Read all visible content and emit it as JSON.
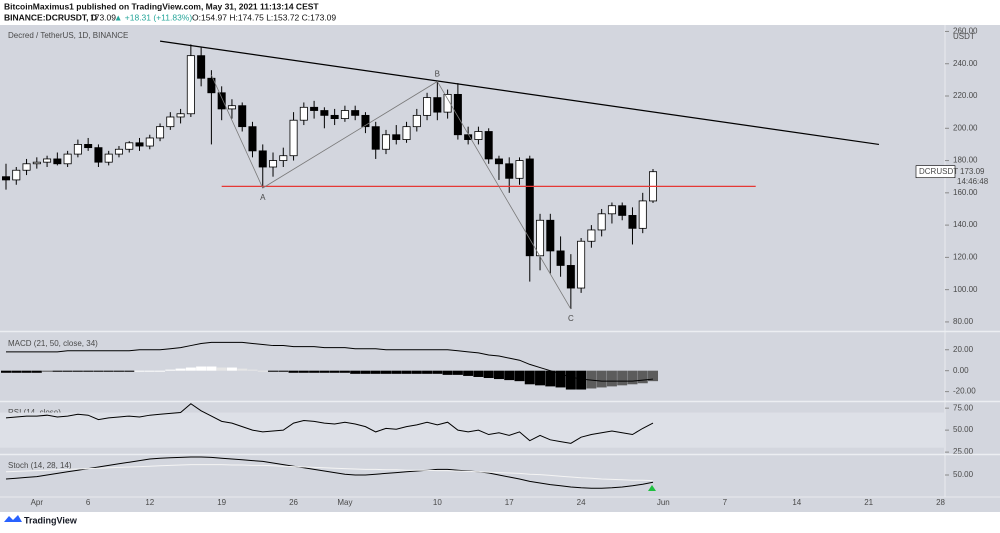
{
  "header": {
    "author_line": "BitcoinMaximus1 published on TradingView.com, May 31, 2021 11:13:14 CEST",
    "symbol": "BINANCE:DCRUSDT, D",
    "price": "173.09",
    "change": "▲ +18.31 (+11.83%)",
    "ohlc": "O:154.97 H:174.75 L:153.72 C:173.09"
  },
  "footer": {
    "brand": "TradingView"
  },
  "chart_data": [
    {
      "type": "candlestick",
      "title": "Decred / TetherUS, 1D, BINANCE",
      "y_unit": "USDT",
      "categories": [
        null,
        null,
        null,
        "Apr",
        null,
        null,
        null,
        null,
        "6",
        null,
        null,
        null,
        null,
        null,
        "12",
        null,
        null,
        null,
        null,
        null,
        null,
        "19",
        null,
        null,
        null,
        null,
        null,
        null,
        "26",
        null,
        null,
        null,
        null,
        "May",
        null,
        null,
        null,
        null,
        null,
        null,
        null,
        null,
        "10",
        null,
        null,
        null,
        null,
        null,
        null,
        "17",
        null,
        null,
        null,
        null,
        null,
        null,
        "24",
        null,
        null,
        null,
        null,
        null,
        null,
        null,
        "Jun",
        null,
        null,
        null,
        null,
        null,
        "7",
        null,
        null,
        null,
        null,
        null,
        null,
        "14",
        null,
        null,
        null,
        null,
        null,
        null,
        "21",
        null,
        null,
        null,
        null,
        null,
        null,
        "28"
      ],
      "open": [
        170,
        168,
        174,
        178,
        179,
        181,
        178,
        184,
        190,
        188,
        179,
        184,
        187,
        191,
        189,
        194,
        201,
        207,
        209,
        245,
        231,
        222,
        212,
        214,
        201,
        186,
        176,
        180,
        183,
        205,
        213,
        211,
        208,
        206,
        211,
        208,
        201,
        187,
        196,
        193,
        201,
        208,
        219,
        210,
        221,
        196,
        193,
        198,
        181,
        178,
        169,
        181,
        121,
        143,
        124,
        115,
        101,
        130,
        137,
        147,
        152,
        146,
        138,
        154.97,
        null,
        null,
        null,
        null,
        null,
        null,
        null,
        null,
        null,
        null,
        null,
        null,
        null,
        null,
        null,
        null,
        null,
        null,
        null,
        null,
        null,
        null,
        null,
        null,
        null,
        null,
        null,
        null
      ],
      "high": [
        178,
        176,
        181,
        182,
        183,
        185,
        186,
        193,
        194,
        190,
        186,
        189,
        192,
        194,
        196,
        203,
        210,
        212,
        252,
        250,
        236,
        226,
        218,
        216,
        204,
        190,
        185,
        188,
        210,
        216,
        217,
        213,
        212,
        214,
        214,
        210,
        204,
        199,
        202,
        204,
        212,
        222,
        229,
        224,
        228,
        201,
        201,
        200,
        183,
        182,
        182,
        183,
        147,
        147,
        133,
        122,
        132,
        140,
        150,
        154,
        154,
        151,
        160,
        174.75,
        null,
        null,
        null,
        null,
        null,
        null,
        null,
        null,
        null,
        null,
        null,
        null,
        null,
        null,
        null,
        null,
        null,
        null,
        null,
        null,
        null,
        null,
        null,
        null,
        null,
        null,
        null,
        null
      ],
      "low": [
        162,
        165,
        171,
        175,
        176,
        177,
        176,
        182,
        186,
        176,
        177,
        182,
        185,
        186,
        187,
        192,
        199,
        203,
        207,
        226,
        190,
        205,
        206,
        198,
        182,
        163,
        170,
        176,
        180,
        202,
        206,
        200,
        202,
        204,
        205,
        197,
        181,
        184,
        190,
        191,
        198,
        205,
        205,
        206,
        193,
        190,
        190,
        178,
        168,
        160,
        165,
        105,
        112,
        110,
        108,
        88,
        98,
        126,
        133,
        141,
        143,
        128,
        135,
        153.72,
        null,
        null,
        null,
        null,
        null,
        null,
        null,
        null,
        null,
        null,
        null,
        null,
        null,
        null,
        null,
        null,
        null,
        null,
        null,
        null,
        null,
        null,
        null,
        null,
        null,
        null,
        null,
        null
      ],
      "close": [
        168,
        174,
        178,
        179,
        181,
        178,
        184,
        190,
        188,
        179,
        184,
        187,
        191,
        189,
        194,
        201,
        207,
        209,
        245,
        231,
        222,
        212,
        214,
        201,
        186,
        176,
        180,
        183,
        205,
        213,
        211,
        208,
        206,
        211,
        208,
        201,
        187,
        196,
        193,
        201,
        208,
        219,
        210,
        221,
        196,
        193,
        198,
        181,
        178,
        169,
        180,
        121,
        143,
        124,
        115,
        101,
        130,
        137,
        147,
        152,
        146,
        138,
        155,
        173.09,
        null,
        null,
        null,
        null,
        null,
        null,
        null,
        null,
        null,
        null,
        null,
        null,
        null,
        null,
        null,
        null,
        null,
        null,
        null,
        null,
        null,
        null,
        null,
        null,
        null,
        null,
        null,
        null
      ],
      "up_color": "#ffffff",
      "down_color": "#000000",
      "ylim": [
        75,
        264
      ],
      "yticks": [
        {
          "value": 80,
          "label": "80.00"
        },
        {
          "value": 100,
          "label": "100.00"
        },
        {
          "value": 120,
          "label": "120.00"
        },
        {
          "value": 140,
          "label": "140.00"
        },
        {
          "value": 160,
          "label": "160.00"
        },
        {
          "value": 180,
          "label": "180.00"
        },
        {
          "value": 200,
          "label": "200.00"
        },
        {
          "value": 220,
          "label": "220.00"
        },
        {
          "value": 240,
          "label": "240.00"
        },
        {
          "value": 260,
          "label": "260.00"
        }
      ],
      "lines": [
        {
          "x": [
            15,
            85
          ],
          "y": [
            254,
            190
          ],
          "color": "#000000"
        },
        {
          "x": [
            21,
            73
          ],
          "y": [
            164,
            164
          ],
          "color": "#e53935"
        }
      ],
      "zigzag": {
        "x": [
          20,
          25,
          42,
          55
        ],
        "y": [
          233,
          163,
          229,
          88
        ],
        "labels": [
          null,
          "A",
          "B",
          "C"
        ],
        "color": "#7a7a7a"
      },
      "price_tag": {
        "label": "DCRUSDT",
        "countdown": "14:46:48"
      }
    },
    {
      "type": "macd",
      "title": "MACD (21, 50, close, 34)",
      "series": [
        {
          "color": "#000000",
          "values": [
            18,
            18,
            18,
            18,
            18,
            18,
            19,
            19,
            19,
            19,
            19,
            19,
            19,
            20,
            20,
            20,
            21,
            22,
            24,
            26,
            27,
            27,
            27,
            27,
            26,
            25,
            24,
            24,
            23,
            23,
            23,
            22,
            22,
            22,
            21,
            21,
            21,
            20,
            20,
            20,
            20,
            20,
            20,
            20,
            19,
            18,
            17,
            15,
            14,
            12,
            10,
            6,
            3,
            0,
            -3,
            -6,
            -8,
            -9,
            -10,
            -10,
            -10,
            -10,
            -9,
            -8,
            null,
            null,
            null,
            null,
            null,
            null,
            null,
            null,
            null,
            null,
            null,
            null,
            null,
            null,
            null,
            null,
            null,
            null,
            null,
            null,
            null,
            null,
            null,
            null,
            null,
            null,
            null,
            null
          ]
        }
      ],
      "histogram": {
        "values": [
          -2,
          -2,
          -2,
          -2,
          -1,
          -1,
          -1,
          -1,
          -1,
          -1,
          -1,
          -1,
          -1,
          0,
          0,
          0,
          1,
          2,
          3,
          4,
          4,
          3,
          3,
          2,
          1,
          0,
          -1,
          -1,
          -2,
          -2,
          -2,
          -2,
          -2,
          -2,
          -3,
          -3,
          -3,
          -3,
          -3,
          -3,
          -3,
          -3,
          -3,
          -4,
          -4,
          -5,
          -6,
          -7,
          -8,
          -9,
          -10,
          -13,
          -14,
          -15,
          -16,
          -18,
          -18,
          -17,
          -16,
          -15,
          -14,
          -13,
          -12,
          -10,
          null,
          null,
          null,
          null,
          null,
          null,
          null,
          null,
          null,
          null,
          null,
          null,
          null,
          null,
          null,
          null,
          null,
          null,
          null,
          null,
          null,
          null,
          null,
          null,
          null,
          null,
          null,
          null
        ],
        "colors": {
          "pos_up": "#ffffff",
          "pos_down": "#e6e6e6",
          "neg_down": "#000000",
          "neg_up": "#5c5c5c"
        }
      },
      "ylim": [
        -28,
        36
      ],
      "yticks": [
        {
          "value": 20,
          "label": "20.00"
        },
        {
          "value": 0,
          "label": "0.00"
        },
        {
          "value": -20,
          "label": "-20.00"
        }
      ]
    },
    {
      "type": "line",
      "title": "RSI (14, close)",
      "band": [
        30,
        70
      ],
      "band_color": "#dde0e7",
      "series": [
        {
          "color": "#000000",
          "values": [
            64,
            65,
            66,
            66,
            67,
            65,
            66,
            68,
            67,
            62,
            64,
            65,
            66,
            65,
            67,
            68,
            69,
            70,
            80,
            72,
            66,
            60,
            58,
            54,
            50,
            48,
            49,
            50,
            58,
            61,
            60,
            58,
            57,
            59,
            57,
            54,
            48,
            52,
            51,
            54,
            56,
            59,
            56,
            59,
            50,
            48,
            50,
            45,
            47,
            44,
            48,
            38,
            44,
            39,
            37,
            35,
            42,
            45,
            47,
            49,
            47,
            45,
            52,
            58,
            null,
            null,
            null,
            null,
            null,
            null,
            null,
            null,
            null,
            null,
            null,
            null,
            null,
            null,
            null,
            null,
            null,
            null,
            null,
            null,
            null,
            null,
            null,
            null,
            null,
            null,
            null,
            null
          ]
        }
      ],
      "ylim": [
        24,
        82
      ],
      "yticks": [
        {
          "value": 75,
          "label": "75.00"
        },
        {
          "value": 50,
          "label": "50.00"
        },
        {
          "value": 25,
          "label": "25.00"
        }
      ]
    },
    {
      "type": "line",
      "title": "Stoch (14, 28, 14)",
      "series": [
        {
          "color": "#000000",
          "values": [
            40,
            42,
            44,
            46,
            50,
            54,
            58,
            62,
            66,
            70,
            74,
            78,
            82,
            86,
            90,
            92,
            93,
            94,
            95,
            95,
            94,
            92,
            90,
            88,
            86,
            84,
            80,
            76,
            72,
            68,
            64,
            60,
            56,
            52,
            50,
            50,
            52,
            54,
            56,
            58,
            60,
            62,
            64,
            64,
            62,
            60,
            58,
            55,
            50,
            45,
            40,
            34,
            30,
            26,
            23,
            20,
            18,
            17,
            17,
            18,
            20,
            23,
            27,
            32,
            null,
            null,
            null,
            null,
            null,
            null,
            null,
            null,
            null,
            null,
            null,
            null,
            null,
            null,
            null,
            null,
            null,
            null,
            null,
            null,
            null,
            null,
            null,
            null,
            null,
            null,
            null,
            null
          ]
        },
        {
          "color": "#f4f4f4",
          "values": [
            58,
            59,
            60,
            61,
            62,
            63,
            64,
            65,
            66,
            67,
            68,
            69,
            70,
            71,
            72,
            73,
            74,
            75,
            76,
            76,
            76,
            76,
            75,
            75,
            74,
            74,
            73,
            72,
            71,
            70,
            69,
            68,
            67,
            66,
            65,
            64,
            64,
            63,
            63,
            62,
            62,
            62,
            61,
            61,
            60,
            59,
            58,
            57,
            56,
            55,
            54,
            52,
            51,
            49,
            47,
            45,
            43,
            42,
            40,
            39,
            38,
            37,
            37,
            36,
            null,
            null,
            null,
            null,
            null,
            null,
            null,
            null,
            null,
            null,
            null,
            null,
            null,
            null,
            null,
            null,
            null,
            null,
            null,
            null,
            null,
            null,
            null,
            null,
            null,
            null,
            null,
            null
          ]
        }
      ],
      "ylim": [
        -5,
        100
      ],
      "yticks": [
        {
          "value": 50,
          "label": "50.00"
        }
      ]
    }
  ]
}
